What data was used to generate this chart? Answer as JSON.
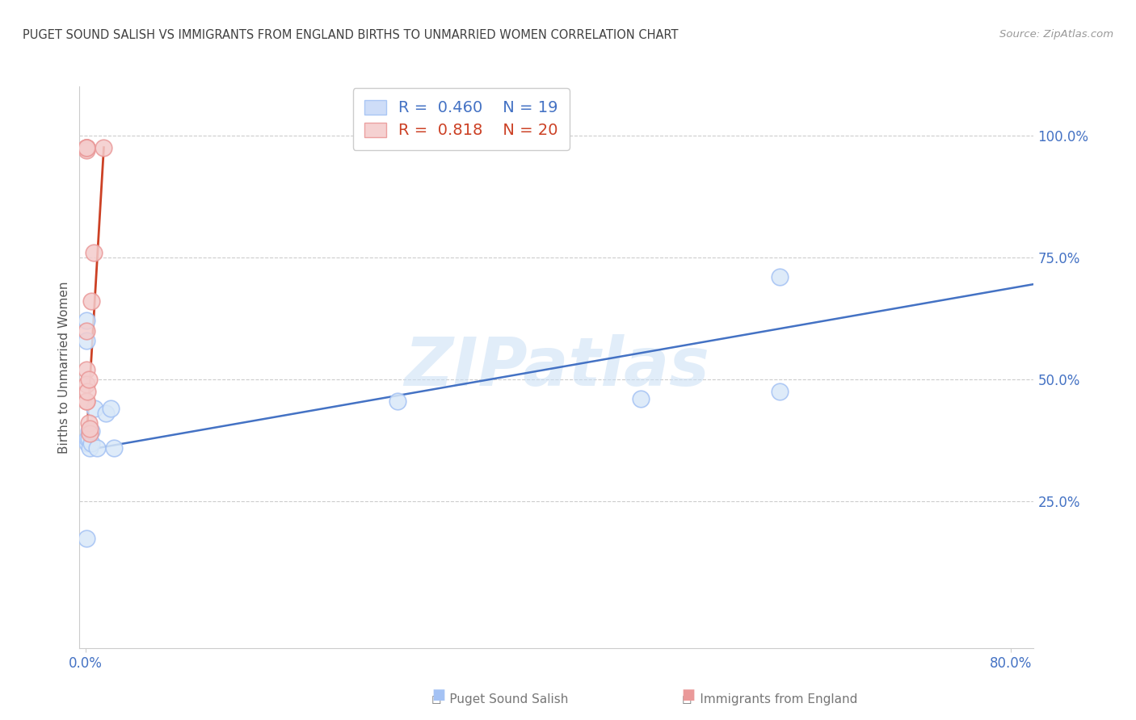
{
  "title": "PUGET SOUND SALISH VS IMMIGRANTS FROM ENGLAND BIRTHS TO UNMARRIED WOMEN CORRELATION CHART",
  "source": "Source: ZipAtlas.com",
  "ylabel": "Births to Unmarried Women",
  "legend_blue_R": "0.460",
  "legend_blue_N": "19",
  "legend_pink_R": "0.818",
  "legend_pink_N": "20",
  "watermark_text": "ZIPatlas",
  "xlim": [
    -0.005,
    0.82
  ],
  "ylim": [
    -0.05,
    1.1
  ],
  "yticks_right": [
    0.25,
    0.5,
    0.75,
    1.0
  ],
  "xtick_labels": [
    "0.0%",
    "80.0%"
  ],
  "xtick_vals": [
    0.0,
    0.8
  ],
  "blue_color": "#a4c2f4",
  "pink_color": "#ea9999",
  "blue_line_color": "#4472c4",
  "pink_line_color": "#cc4125",
  "title_color": "#404040",
  "axis_label_color": "#4472c4",
  "grid_color": "#cccccc",
  "blue_x": [
    0.001,
    0.001,
    0.002,
    0.002,
    0.003,
    0.003,
    0.004,
    0.005,
    0.005,
    0.008,
    0.01,
    0.018,
    0.022,
    0.025,
    0.27,
    0.48,
    0.6,
    0.6,
    0.001
  ],
  "blue_y": [
    0.62,
    0.58,
    0.37,
    0.38,
    0.38,
    0.395,
    0.36,
    0.37,
    0.395,
    0.44,
    0.36,
    0.43,
    0.44,
    0.36,
    0.455,
    0.46,
    0.71,
    0.475,
    0.175
  ],
  "pink_x": [
    0.001,
    0.001,
    0.001,
    0.001,
    0.001,
    0.001,
    0.001,
    0.001,
    0.001,
    0.001,
    0.001,
    0.001,
    0.002,
    0.003,
    0.003,
    0.004,
    0.004,
    0.005,
    0.007,
    0.016
  ],
  "pink_y": [
    0.975,
    0.975,
    0.975,
    0.975,
    0.97,
    0.975,
    0.975,
    0.6,
    0.52,
    0.49,
    0.455,
    0.455,
    0.475,
    0.5,
    0.41,
    0.39,
    0.4,
    0.66,
    0.76,
    0.975
  ],
  "blue_trend_x": [
    0.0,
    0.82
  ],
  "blue_trend_y": [
    0.355,
    0.695
  ],
  "pink_trend_x": [
    0.001,
    0.016
  ],
  "pink_trend_y": [
    0.375,
    0.975
  ]
}
